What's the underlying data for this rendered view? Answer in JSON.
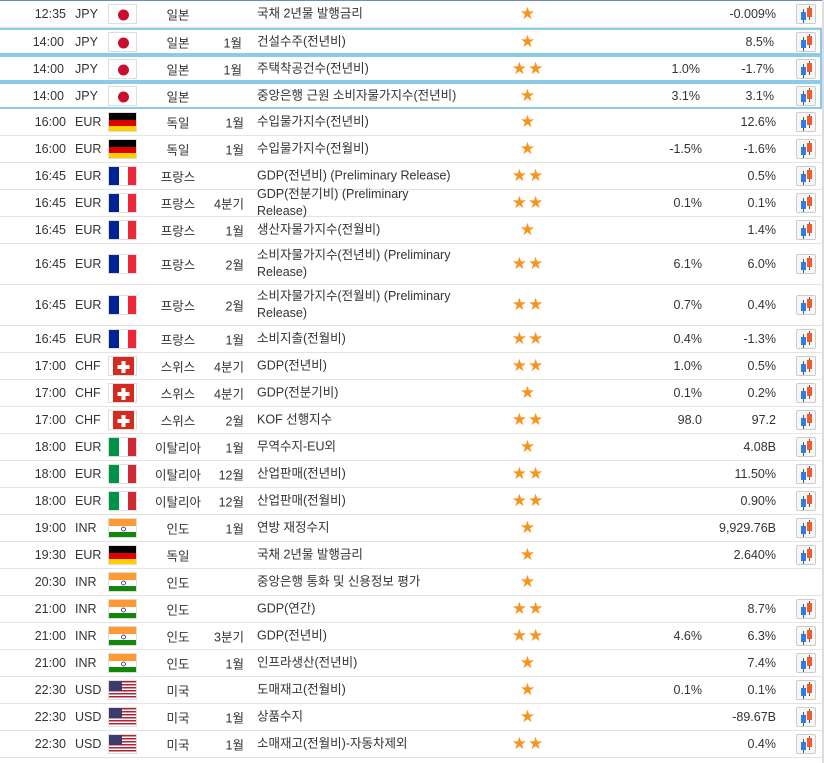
{
  "colors": {
    "star": "#f7941d",
    "highlight_border": "#8ccbe8"
  },
  "rows": [
    {
      "time": "12:35",
      "currency": "JPY",
      "flag": "jp",
      "country": "일본",
      "period": "",
      "event": "국채 2년물 발행금리",
      "stars": 1,
      "forecast": "",
      "previous": "-0.009%",
      "chart": true
    },
    {
      "time": "14:00",
      "currency": "JPY",
      "flag": "jp",
      "country": "일본",
      "period": "1월",
      "event": "건설수주(전년비)",
      "stars": 1,
      "forecast": "",
      "previous": "8.5%",
      "chart": true,
      "highlight": true
    },
    {
      "time": "14:00",
      "currency": "JPY",
      "flag": "jp",
      "country": "일본",
      "period": "1월",
      "event": "주택착공건수(전년비)",
      "stars": 2,
      "forecast": "1.0%",
      "previous": "-1.7%",
      "chart": true,
      "highlight": true
    },
    {
      "time": "14:00",
      "currency": "JPY",
      "flag": "jp",
      "country": "일본",
      "period": "",
      "event": "중앙은행 근원 소비자물가지수(전년비)",
      "stars": 1,
      "forecast": "3.1%",
      "previous": "3.1%",
      "chart": true,
      "highlight": true
    },
    {
      "time": "16:00",
      "currency": "EUR",
      "flag": "de",
      "country": "독일",
      "period": "1월",
      "event": "수입물가지수(전년비)",
      "stars": 1,
      "forecast": "",
      "previous": "12.6%",
      "chart": true
    },
    {
      "time": "16:00",
      "currency": "EUR",
      "flag": "de",
      "country": "독일",
      "period": "1월",
      "event": "수입물가지수(전월비)",
      "stars": 1,
      "forecast": "-1.5%",
      "previous": "-1.6%",
      "chart": true
    },
    {
      "time": "16:45",
      "currency": "EUR",
      "flag": "fr",
      "country": "프랑스",
      "period": "",
      "event": "GDP(전년비) (Preliminary Release)",
      "stars": 2,
      "forecast": "",
      "previous": "0.5%",
      "chart": true
    },
    {
      "time": "16:45",
      "currency": "EUR",
      "flag": "fr",
      "country": "프랑스",
      "period": "4분기",
      "event": "GDP(전분기비) (Preliminary Release)",
      "stars": 2,
      "forecast": "0.1%",
      "previous": "0.1%",
      "chart": true
    },
    {
      "time": "16:45",
      "currency": "EUR",
      "flag": "fr",
      "country": "프랑스",
      "period": "1월",
      "event": "생산자물가지수(전월비)",
      "stars": 1,
      "forecast": "",
      "previous": "1.4%",
      "chart": true
    },
    {
      "time": "16:45",
      "currency": "EUR",
      "flag": "fr",
      "country": "프랑스",
      "period": "2월",
      "event": "소비자물가지수(전년비) (Preliminary Release)",
      "stars": 2,
      "forecast": "6.1%",
      "previous": "6.0%",
      "chart": true,
      "tall": true
    },
    {
      "time": "16:45",
      "currency": "EUR",
      "flag": "fr",
      "country": "프랑스",
      "period": "2월",
      "event": "소비자물가지수(전월비) (Preliminary Release)",
      "stars": 2,
      "forecast": "0.7%",
      "previous": "0.4%",
      "chart": true,
      "tall": true
    },
    {
      "time": "16:45",
      "currency": "EUR",
      "flag": "fr",
      "country": "프랑스",
      "period": "1월",
      "event": "소비지출(전월비)",
      "stars": 2,
      "forecast": "0.4%",
      "previous": "-1.3%",
      "chart": true
    },
    {
      "time": "17:00",
      "currency": "CHF",
      "flag": "ch",
      "country": "스위스",
      "period": "4분기",
      "event": "GDP(전년비)",
      "stars": 2,
      "forecast": "1.0%",
      "previous": "0.5%",
      "chart": true
    },
    {
      "time": "17:00",
      "currency": "CHF",
      "flag": "ch",
      "country": "스위스",
      "period": "4분기",
      "event": "GDP(전분기비)",
      "stars": 1,
      "forecast": "0.1%",
      "previous": "0.2%",
      "chart": true
    },
    {
      "time": "17:00",
      "currency": "CHF",
      "flag": "ch",
      "country": "스위스",
      "period": "2월",
      "event": "KOF 선행지수",
      "stars": 2,
      "forecast": "98.0",
      "previous": "97.2",
      "chart": true
    },
    {
      "time": "18:00",
      "currency": "EUR",
      "flag": "it",
      "country": "이탈리아",
      "period": "1월",
      "event": "무역수지-EU외",
      "stars": 1,
      "forecast": "",
      "previous": "4.08B",
      "chart": true
    },
    {
      "time": "18:00",
      "currency": "EUR",
      "flag": "it",
      "country": "이탈리아",
      "period": "12월",
      "event": "산업판매(전년비)",
      "stars": 2,
      "forecast": "",
      "previous": "11.50%",
      "chart": true
    },
    {
      "time": "18:00",
      "currency": "EUR",
      "flag": "it",
      "country": "이탈리아",
      "period": "12월",
      "event": "산업판매(전월비)",
      "stars": 2,
      "forecast": "",
      "previous": "0.90%",
      "chart": true
    },
    {
      "time": "19:00",
      "currency": "INR",
      "flag": "in",
      "country": "인도",
      "period": "1월",
      "event": "연방 재정수지",
      "stars": 1,
      "forecast": "",
      "previous": "9,929.76B",
      "chart": true
    },
    {
      "time": "19:30",
      "currency": "EUR",
      "flag": "de",
      "country": "독일",
      "period": "",
      "event": "국채 2년물 발행금리",
      "stars": 1,
      "forecast": "",
      "previous": "2.640%",
      "chart": true
    },
    {
      "time": "20:30",
      "currency": "INR",
      "flag": "in",
      "country": "인도",
      "period": "",
      "event": "중앙은행 통화 및 신용정보 평가",
      "stars": 1,
      "forecast": "",
      "previous": "",
      "chart": false
    },
    {
      "time": "21:00",
      "currency": "INR",
      "flag": "in",
      "country": "인도",
      "period": "",
      "event": "GDP(연간)",
      "stars": 2,
      "forecast": "",
      "previous": "8.7%",
      "chart": true
    },
    {
      "time": "21:00",
      "currency": "INR",
      "flag": "in",
      "country": "인도",
      "period": "3분기",
      "event": "GDP(전년비)",
      "stars": 2,
      "forecast": "4.6%",
      "previous": "6.3%",
      "chart": true
    },
    {
      "time": "21:00",
      "currency": "INR",
      "flag": "in",
      "country": "인도",
      "period": "1월",
      "event": "인프라생산(전년비)",
      "stars": 1,
      "forecast": "",
      "previous": "7.4%",
      "chart": true
    },
    {
      "time": "22:30",
      "currency": "USD",
      "flag": "us",
      "country": "미국",
      "period": "",
      "event": "도매재고(전월비)",
      "stars": 1,
      "forecast": "0.1%",
      "previous": "0.1%",
      "chart": true
    },
    {
      "time": "22:30",
      "currency": "USD",
      "flag": "us",
      "country": "미국",
      "period": "1월",
      "event": "상품수지",
      "stars": 1,
      "forecast": "",
      "previous": "-89.67B",
      "chart": true
    },
    {
      "time": "22:30",
      "currency": "USD",
      "flag": "us",
      "country": "미국",
      "period": "1월",
      "event": "소매재고(전월비)-자동차제외",
      "stars": 2,
      "forecast": "",
      "previous": "0.4%",
      "chart": true
    }
  ]
}
